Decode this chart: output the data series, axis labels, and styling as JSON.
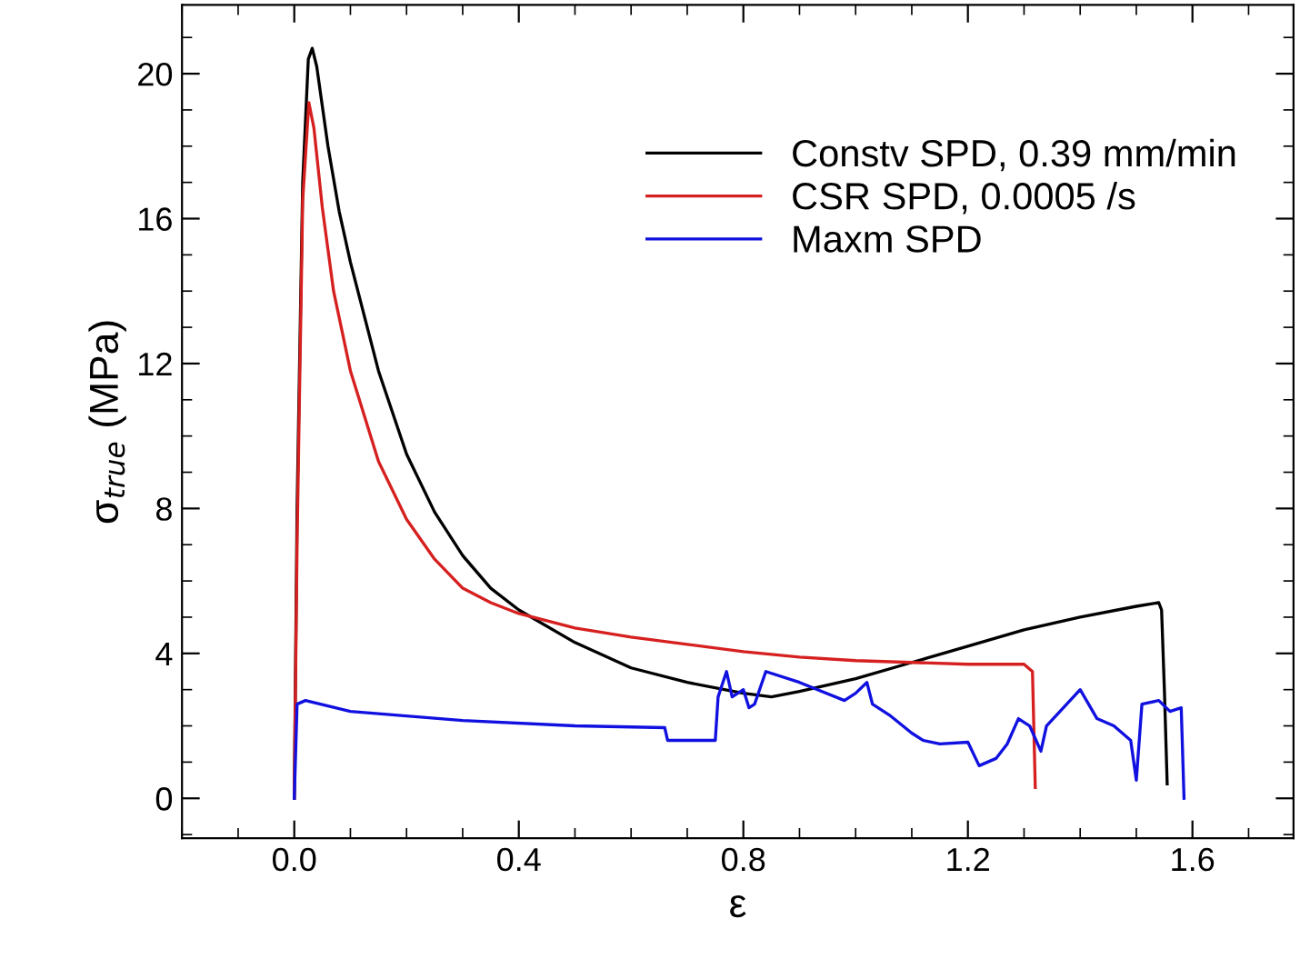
{
  "chart_data": {
    "type": "line",
    "xlabel": "ε",
    "ylabel": "σ$_{true}$ (MPa)",
    "xlim": [
      -0.2,
      1.78
    ],
    "ylim": [
      -1.1,
      21.9
    ],
    "xticks": [
      {
        "value": 0.0,
        "label": "0.0"
      },
      0.4,
      0.8,
      1.2,
      1.6
    ],
    "yticks": [
      0,
      4,
      8,
      12,
      16,
      20
    ],
    "grid": false,
    "legend": "top right",
    "marker": "none",
    "line_style": "solid",
    "series": [
      {
        "name": "Constv SPD, 0.39 mm/min",
        "color": "#000000",
        "x": [
          0,
          0.005,
          0.015,
          0.025,
          0.032,
          0.04,
          0.06,
          0.08,
          0.1,
          0.15,
          0.2,
          0.25,
          0.3,
          0.35,
          0.4,
          0.5,
          0.6,
          0.7,
          0.8,
          0.85,
          0.9,
          1.0,
          1.1,
          1.2,
          1.3,
          1.4,
          1.5,
          1.54,
          1.545,
          1.55,
          1.555
        ],
        "values": [
          0,
          8,
          17,
          20.4,
          20.7,
          20.2,
          18,
          16.2,
          14.8,
          11.8,
          9.5,
          7.9,
          6.7,
          5.8,
          5.2,
          4.3,
          3.6,
          3.2,
          2.9,
          2.8,
          2.95,
          3.3,
          3.75,
          4.2,
          4.65,
          5.0,
          5.3,
          5.4,
          5.2,
          3,
          0.4
        ]
      },
      {
        "name": "CSR SPD, 0.0005 /s",
        "color": "#d62020",
        "x": [
          0,
          0.005,
          0.015,
          0.026,
          0.035,
          0.05,
          0.07,
          0.1,
          0.15,
          0.2,
          0.25,
          0.3,
          0.35,
          0.4,
          0.5,
          0.6,
          0.7,
          0.8,
          0.9,
          1.0,
          1.1,
          1.2,
          1.3,
          1.315,
          1.32
        ],
        "values": [
          0,
          7,
          16.5,
          19.2,
          18.5,
          16.3,
          14,
          11.8,
          9.3,
          7.7,
          6.6,
          5.8,
          5.4,
          5.1,
          4.7,
          4.45,
          4.25,
          4.05,
          3.9,
          3.8,
          3.75,
          3.7,
          3.7,
          3.5,
          0.3
        ]
      },
      {
        "name": "Maxm SPD",
        "color": "#1010e0",
        "x": [
          0,
          0.005,
          0.02,
          0.1,
          0.3,
          0.5,
          0.66,
          0.665,
          0.75,
          0.755,
          0.77,
          0.78,
          0.8,
          0.81,
          0.82,
          0.84,
          0.9,
          0.98,
          1.0,
          1.02,
          1.03,
          1.06,
          1.1,
          1.12,
          1.15,
          1.2,
          1.22,
          1.25,
          1.27,
          1.29,
          1.31,
          1.33,
          1.34,
          1.37,
          1.4,
          1.43,
          1.46,
          1.49,
          1.5,
          1.51,
          1.54,
          1.56,
          1.58,
          1.585
        ],
        "values": [
          0,
          2.6,
          2.7,
          2.4,
          2.15,
          2.0,
          1.95,
          1.6,
          1.6,
          2.8,
          3.5,
          2.8,
          3.0,
          2.5,
          2.6,
          3.5,
          3.2,
          2.7,
          2.9,
          3.2,
          2.6,
          2.3,
          1.8,
          1.6,
          1.5,
          1.55,
          0.9,
          1.1,
          1.5,
          2.2,
          2.0,
          1.3,
          2.0,
          2.5,
          3.0,
          2.2,
          2.0,
          1.6,
          0.5,
          2.6,
          2.7,
          2.4,
          2.5,
          0
        ]
      }
    ]
  }
}
